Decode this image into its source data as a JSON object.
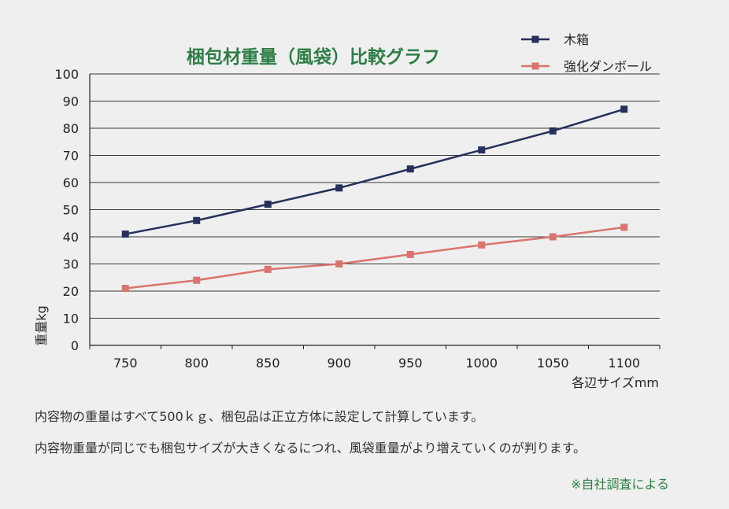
{
  "chart_data": {
    "type": "line",
    "title": "梱包材重量（風袋）比較グラフ",
    "xlabel": "各辺サイズmm",
    "ylabel": "重量kg",
    "categories": [
      "750",
      "800",
      "850",
      "900",
      "950",
      "1000",
      "1050",
      "1100"
    ],
    "series": [
      {
        "name": "木箱",
        "color": "#27305a",
        "values": [
          41,
          46,
          52,
          58,
          65,
          72,
          79,
          87
        ]
      },
      {
        "name": "強化ダンボール",
        "color": "#d9756f",
        "values": [
          21,
          24,
          28,
          30,
          33.5,
          37,
          40,
          43.5
        ]
      }
    ],
    "ylim": [
      0,
      100
    ],
    "yticks": [
      0,
      10,
      20,
      30,
      40,
      50,
      60,
      70,
      80,
      90,
      100
    ],
    "grid": true,
    "legend_position": "top-right",
    "title_color": "#2e7d46"
  },
  "notes": [
    "内容物の重量はすべて500ｋｇ、梱包品は正立方体に設定して計算しています。",
    "内容物重量が同じでも梱包サイズが大きくなるにつれ、風袋重量がより増えていくのが判ります。"
  ],
  "source": "※自社調査による",
  "source_color": "#2e7d46"
}
